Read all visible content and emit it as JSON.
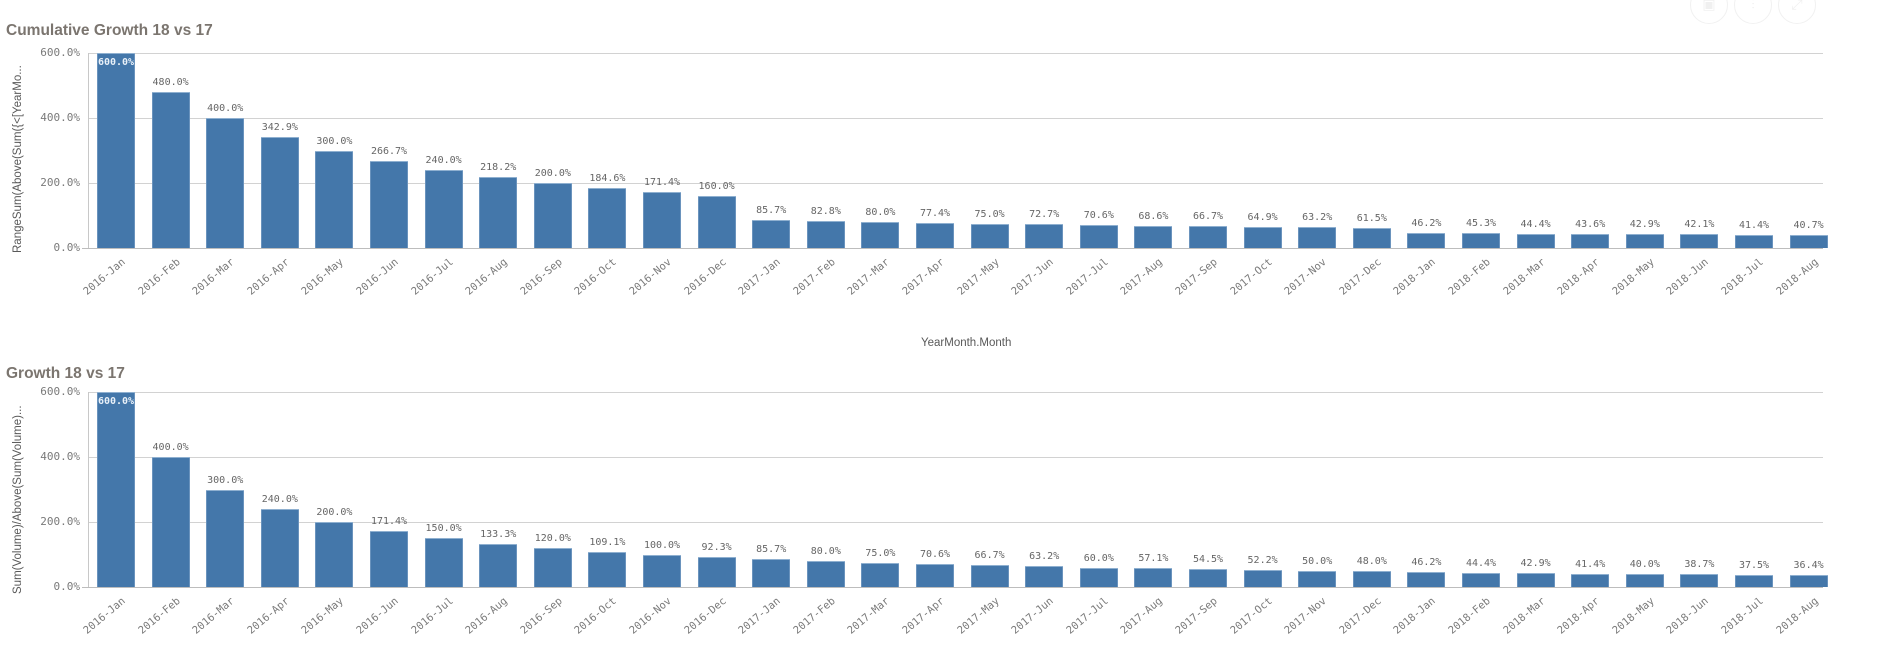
{
  "toolbar": {
    "buttons": [
      {
        "name": "snapshot",
        "icon": "camera-icon",
        "glyph": "▣"
      },
      {
        "name": "exploration",
        "icon": "sliders-icon",
        "glyph": "⫶"
      },
      {
        "name": "fullscreen",
        "icon": "expand-icon",
        "glyph": "⤢"
      }
    ]
  },
  "colors": {
    "bar": "#4477aa",
    "title": "#7b756f",
    "grid": "#d2d2d2",
    "text": "#7a7a7a"
  },
  "charts": [
    {
      "title": "Cumulative Growth 18 vs 17",
      "ylabel": "RangeSum(Above(Sum({<[YearMo...",
      "xlabel": "YearMonth.Month",
      "yticks": [
        "600.0%",
        "400.0%",
        "200.0%",
        "0.0%"
      ]
    },
    {
      "title": "Growth 18 vs 17",
      "ylabel": "Sum(Volume)/Above(Sum(Volume)...",
      "xlabel": "",
      "yticks": [
        "600.0%",
        "400.0%",
        "200.0%",
        "0.0%"
      ]
    }
  ],
  "chart_data": [
    {
      "type": "bar",
      "title": "Cumulative Growth 18 vs 17",
      "xlabel": "YearMonth.Month",
      "ylabel": "RangeSum(Above(Sum({<[YearMo...",
      "ylim": [
        0,
        600
      ],
      "yticks": [
        0,
        200,
        400,
        600
      ],
      "grid": true,
      "legend": "none",
      "categories": [
        "2016-Jan",
        "2016-Feb",
        "2016-Mar",
        "2016-Apr",
        "2016-May",
        "2016-Jun",
        "2016-Jul",
        "2016-Aug",
        "2016-Sep",
        "2016-Oct",
        "2016-Nov",
        "2016-Dec",
        "2017-Jan",
        "2017-Feb",
        "2017-Mar",
        "2017-Apr",
        "2017-May",
        "2017-Jun",
        "2017-Jul",
        "2017-Aug",
        "2017-Sep",
        "2017-Oct",
        "2017-Nov",
        "2017-Dec",
        "2018-Jan",
        "2018-Feb",
        "2018-Mar",
        "2018-Apr",
        "2018-May",
        "2018-Jun",
        "2018-Jul",
        "2018-Aug"
      ],
      "values": [
        600.0,
        480.0,
        400.0,
        342.9,
        300.0,
        266.7,
        240.0,
        218.2,
        200.0,
        184.6,
        171.4,
        160.0,
        85.7,
        82.8,
        80.0,
        77.4,
        75.0,
        72.7,
        70.6,
        68.6,
        66.7,
        64.9,
        63.2,
        61.5,
        46.2,
        45.3,
        44.4,
        43.6,
        42.9,
        42.1,
        41.4,
        40.7
      ],
      "labels": [
        "600.0%",
        "480.0%",
        "400.0%",
        "342.9%",
        "300.0%",
        "266.7%",
        "240.0%",
        "218.2%",
        "200.0%",
        "184.6%",
        "171.4%",
        "160.0%",
        "85.7%",
        "82.8%",
        "80.0%",
        "77.4%",
        "75.0%",
        "72.7%",
        "70.6%",
        "68.6%",
        "66.7%",
        "64.9%",
        "63.2%",
        "61.5%",
        "46.2%",
        "45.3%",
        "44.4%",
        "43.6%",
        "42.9%",
        "42.1%",
        "41.4%",
        "40.7%"
      ]
    },
    {
      "type": "bar",
      "title": "Growth 18 vs 17",
      "xlabel": "",
      "ylabel": "Sum(Volume)/Above(Sum(Volume)...",
      "ylim": [
        0,
        600
      ],
      "yticks": [
        0,
        200,
        400,
        600
      ],
      "grid": true,
      "legend": "none",
      "categories": [
        "2016-Jan",
        "2016-Feb",
        "2016-Mar",
        "2016-Apr",
        "2016-May",
        "2016-Jun",
        "2016-Jul",
        "2016-Aug",
        "2016-Sep",
        "2016-Oct",
        "2016-Nov",
        "2016-Dec",
        "2017-Jan",
        "2017-Feb",
        "2017-Mar",
        "2017-Apr",
        "2017-May",
        "2017-Jun",
        "2017-Jul",
        "2017-Aug",
        "2017-Sep",
        "2017-Oct",
        "2017-Nov",
        "2017-Dec",
        "2018-Jan",
        "2018-Feb",
        "2018-Mar",
        "2018-Apr",
        "2018-May",
        "2018-Jun",
        "2018-Jul",
        "2018-Aug"
      ],
      "values": [
        600.0,
        400.0,
        300.0,
        240.0,
        200.0,
        171.4,
        150.0,
        133.3,
        120.0,
        109.1,
        100.0,
        92.3,
        85.7,
        80.0,
        75.0,
        70.6,
        66.7,
        63.2,
        60.0,
        57.1,
        54.5,
        52.2,
        50.0,
        48.0,
        46.2,
        44.4,
        42.9,
        41.4,
        40.0,
        38.7,
        37.5,
        36.4
      ],
      "labels": [
        "600.0%",
        "400.0%",
        "300.0%",
        "240.0%",
        "200.0%",
        "171.4%",
        "150.0%",
        "133.3%",
        "120.0%",
        "109.1%",
        "100.0%",
        "92.3%",
        "85.7%",
        "80.0%",
        "75.0%",
        "70.6%",
        "66.7%",
        "63.2%",
        "60.0%",
        "57.1%",
        "54.5%",
        "52.2%",
        "50.0%",
        "48.0%",
        "46.2%",
        "44.4%",
        "42.9%",
        "41.4%",
        "40.0%",
        "38.7%",
        "37.5%",
        "36.4%"
      ]
    }
  ]
}
